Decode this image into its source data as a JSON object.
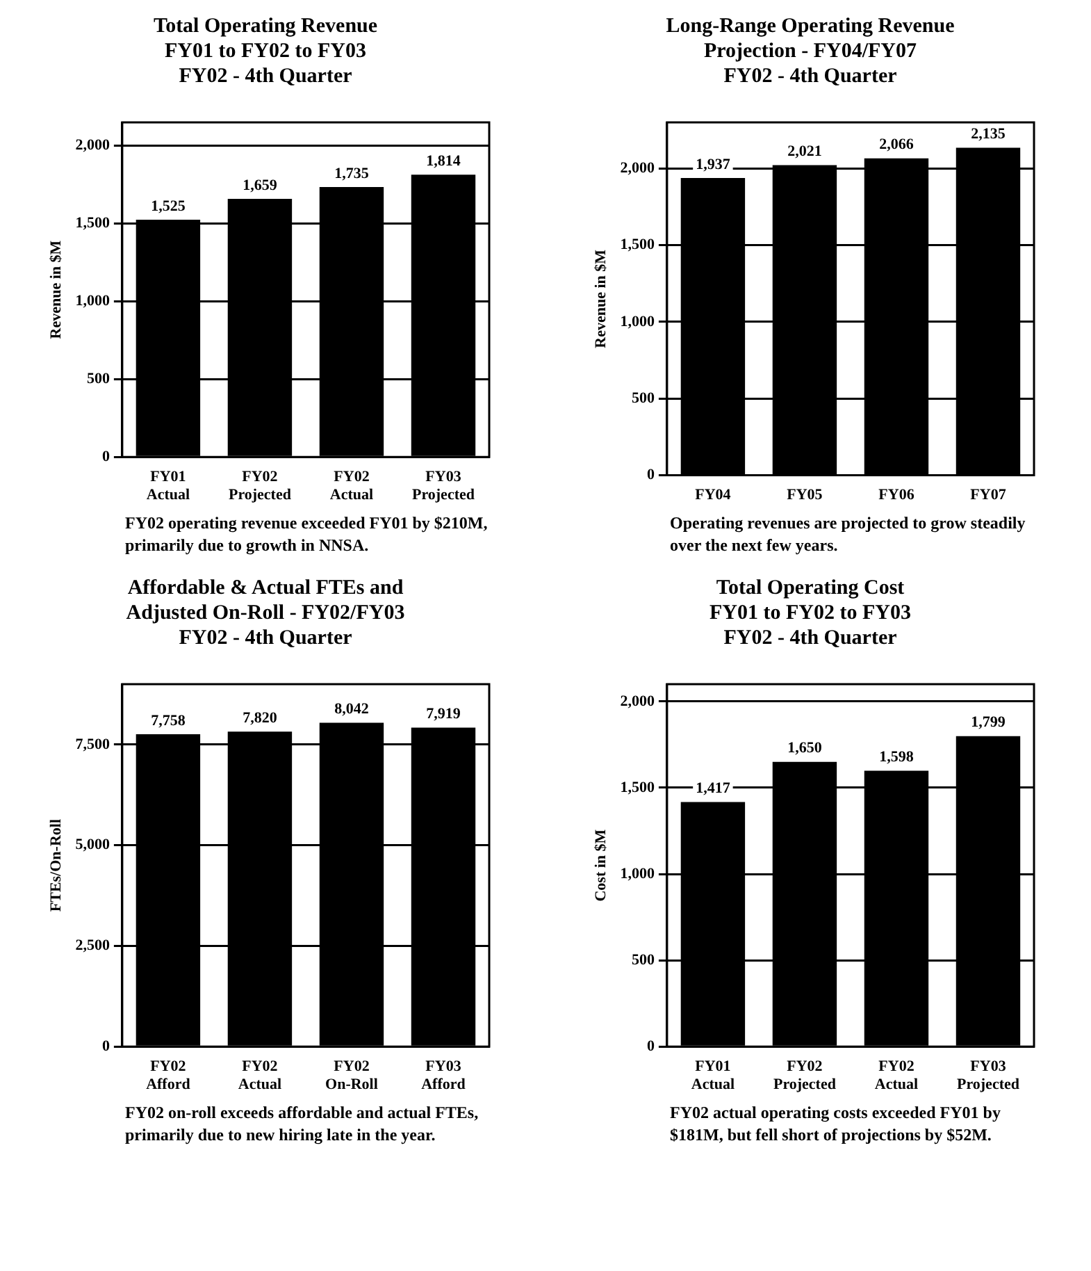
{
  "chart_data": [
    {
      "type": "bar",
      "title": "Total Operating Revenue\nFY01 to FY02 to FY03",
      "subtitle": "FY02 - 4th Quarter",
      "ylabel": "Revenue in $M",
      "categories": [
        "FY01 Actual",
        "FY02 Projected",
        "FY02 Actual",
        "FY03 Projected"
      ],
      "values": [
        1525,
        1659,
        1735,
        1814
      ],
      "value_labels": [
        "1,525",
        "1,659",
        "1,735",
        "1,814"
      ],
      "color": "#000000",
      "ylim": [
        0,
        2150
      ],
      "yticks": [
        {
          "value": 0,
          "label": "0"
        },
        {
          "value": 500,
          "label": "500"
        },
        {
          "value": 1000,
          "label": "1,000"
        },
        {
          "value": 1500,
          "label": "1,500"
        },
        {
          "value": 2000,
          "label": "2,000"
        }
      ],
      "grid": "y",
      "annotations": [
        "FY02 operating revenue exceeded FY01 by $210M, primarily due to growth in NNSA."
      ]
    },
    {
      "type": "bar",
      "title": "Long-Range Operating Revenue\nProjection - FY04/FY07",
      "subtitle": "FY02 - 4th Quarter",
      "ylabel": "Revenue in $M",
      "categories": [
        "FY04",
        "FY05",
        "FY06",
        "FY07"
      ],
      "values": [
        1937,
        2021,
        2066,
        2135
      ],
      "value_labels": [
        "1,937",
        "2,021",
        "2,066",
        "2,135"
      ],
      "color": "#000000",
      "ylim": [
        0,
        2300
      ],
      "yticks": [
        {
          "value": 0,
          "label": "0"
        },
        {
          "value": 500,
          "label": "500"
        },
        {
          "value": 1000,
          "label": "1,000"
        },
        {
          "value": 1500,
          "label": "1,500"
        },
        {
          "value": 2000,
          "label": "2,000"
        }
      ],
      "grid": "y",
      "annotations": [
        "Operating revenues are projected to grow steadily over the next few years."
      ]
    },
    {
      "type": "bar",
      "title": "Affordable & Actual FTEs and\nAdjusted On-Roll - FY02/FY03",
      "subtitle": "FY02 - 4th Quarter",
      "ylabel": "FTEs/On-Roll",
      "categories": [
        "FY02 Afford",
        "FY02 Actual",
        "FY02 On-Roll",
        "FY03 Afford"
      ],
      "values": [
        7758,
        7820,
        8042,
        7919
      ],
      "value_labels": [
        "7,758",
        "7,820",
        "8,042",
        "7,919"
      ],
      "color": "#000000",
      "ylim": [
        0,
        9000
      ],
      "yticks": [
        {
          "value": 0,
          "label": "0"
        },
        {
          "value": 2500,
          "label": "2,500"
        },
        {
          "value": 5000,
          "label": "5,000"
        },
        {
          "value": 7500,
          "label": "7,500"
        }
      ],
      "grid": "y",
      "annotations": [
        "FY02 on-roll exceeds affordable and actual FTEs, primarily due to new hiring late in the year."
      ]
    },
    {
      "type": "bar",
      "title": "Total Operating Cost\nFY01 to FY02 to FY03",
      "subtitle": "FY02 - 4th Quarter",
      "ylabel": "Cost in $M",
      "categories": [
        "FY01 Actual",
        "FY02 Projected",
        "FY02 Actual",
        "FY03 Projected"
      ],
      "values": [
        1417,
        1650,
        1598,
        1799
      ],
      "value_labels": [
        "1,417",
        "1,650",
        "1,598",
        "1,799"
      ],
      "color": "#000000",
      "ylim": [
        0,
        2100
      ],
      "yticks": [
        {
          "value": 0,
          "label": "0"
        },
        {
          "value": 500,
          "label": "500"
        },
        {
          "value": 1000,
          "label": "1,000"
        },
        {
          "value": 1500,
          "label": "1,500"
        },
        {
          "value": 2000,
          "label": "2,000"
        }
      ],
      "grid": "y",
      "annotations": [
        "FY02 actual operating costs exceeded FY01 by $181M, but fell short of projections by $52M."
      ]
    }
  ]
}
